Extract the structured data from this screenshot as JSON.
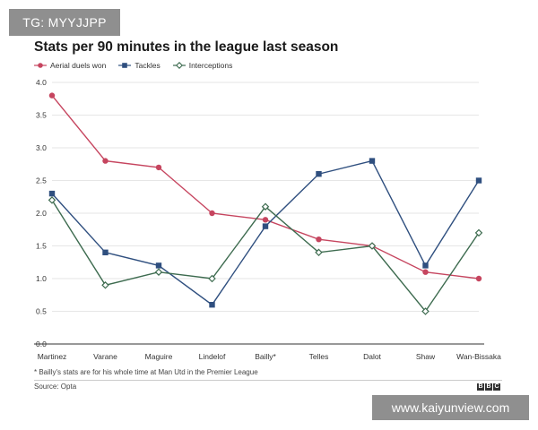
{
  "watermark_top": "TG: MYYJJPP",
  "watermark_bottom": "www.kaiyunview.com",
  "footnote": "* Bailly's stats are for his whole time at Man Utd in the Premier League",
  "source": "Source: Opta",
  "bbc_logo": [
    "B",
    "B",
    "C"
  ],
  "colors": {
    "aerial": "#c6455f",
    "tackles": "#2f4f7f",
    "interceptions": "#3d6b4f",
    "axis": "#333333",
    "grid": "#e6e6e6"
  },
  "chart_data": {
    "type": "line",
    "title": "Stats per 90 minutes in the league last season",
    "categories": [
      "Martinez",
      "Varane",
      "Maguire",
      "Lindelof",
      "Bailly*",
      "Telles",
      "Dalot",
      "Shaw",
      "Wan-Bissaka"
    ],
    "ylim": [
      0,
      4.0
    ],
    "yticks": [
      "0.0",
      "0.5",
      "1.0",
      "1.5",
      "2.0",
      "2.5",
      "3.0",
      "3.5",
      "4.0"
    ],
    "grid": true,
    "legend_position": "top-left",
    "series": [
      {
        "name": "Aerial duels won",
        "marker": "circle",
        "values": [
          3.8,
          2.8,
          2.7,
          2.0,
          1.9,
          1.6,
          1.5,
          1.1,
          1.0
        ]
      },
      {
        "name": "Tackles",
        "marker": "square",
        "values": [
          2.3,
          1.4,
          1.2,
          0.6,
          1.8,
          2.6,
          2.8,
          1.2,
          2.5
        ]
      },
      {
        "name": "Interceptions",
        "marker": "diamond",
        "values": [
          2.2,
          0.9,
          1.1,
          1.0,
          2.1,
          1.4,
          1.5,
          0.5,
          1.7
        ]
      }
    ]
  }
}
